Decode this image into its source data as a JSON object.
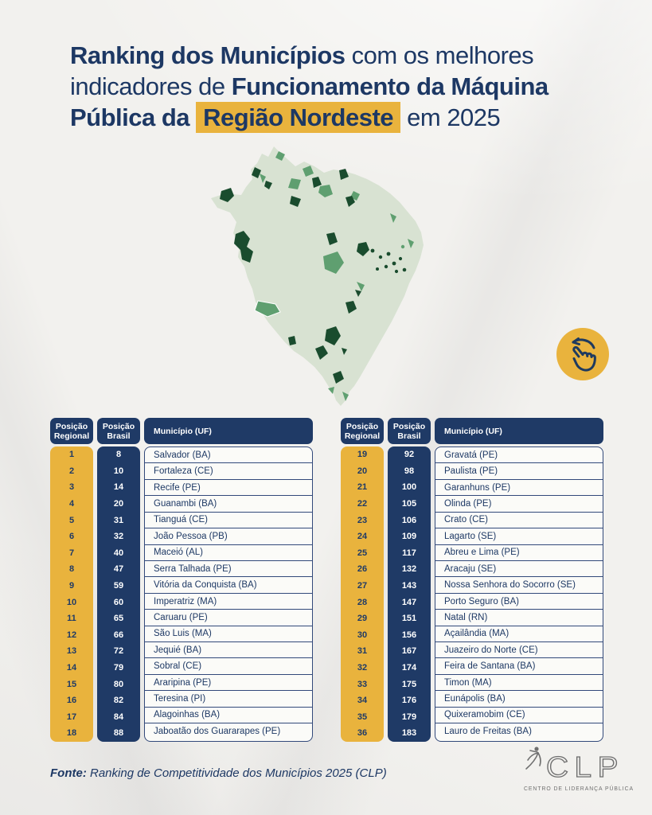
{
  "title": {
    "line1_bold": "Ranking dos Municípios",
    "line1_rest": " com os melhores",
    "line2_pre": "indicadores de ",
    "line2_bold": "Funcionamento da Máquina",
    "line3_bold": "Pública da",
    "line3_highlight": "Região Nordeste",
    "line3_rest": "em 2025"
  },
  "chart_data": {
    "type": "table",
    "title": "Ranking dos Municípios com os melhores indicadores de Funcionamento da Máquina Pública da Região Nordeste em 2025",
    "columns": [
      "Posição Regional",
      "Posição Brasil",
      "Município (UF)"
    ],
    "layout": {
      "split": "two side-by-side tables of 18 rows each",
      "legend_position": "none",
      "grid": "row separators only"
    },
    "rows": [
      [
        "1",
        "8",
        "Salvador (BA)"
      ],
      [
        "2",
        "10",
        "Fortaleza (CE)"
      ],
      [
        "3",
        "14",
        "Recife (PE)"
      ],
      [
        "4",
        "20",
        "Guanambi (BA)"
      ],
      [
        "5",
        "31",
        "Tianguá (CE)"
      ],
      [
        "6",
        "32",
        "João Pessoa (PB)"
      ],
      [
        "7",
        "40",
        "Maceió (AL)"
      ],
      [
        "8",
        "47",
        "Serra Talhada (PE)"
      ],
      [
        "9",
        "59",
        "Vitória da Conquista (BA)"
      ],
      [
        "10",
        "60",
        "Imperatriz (MA)"
      ],
      [
        "11",
        "65",
        "Caruaru (PE)"
      ],
      [
        "12",
        "66",
        "São Luis (MA)"
      ],
      [
        "13",
        "72",
        "Jequié (BA)"
      ],
      [
        "14",
        "79",
        "Sobral (CE)"
      ],
      [
        "15",
        "80",
        "Araripina (PE)"
      ],
      [
        "16",
        "82",
        "Teresina (PI)"
      ],
      [
        "17",
        "84",
        "Alagoinhas (BA)"
      ],
      [
        "18",
        "88",
        "Jaboatão dos Guararapes (PE)"
      ],
      [
        "19",
        "92",
        "Gravatá (PE)"
      ],
      [
        "20",
        "98",
        "Paulista (PE)"
      ],
      [
        "21",
        "100",
        "Garanhuns (PE)"
      ],
      [
        "22",
        "105",
        "Olinda (PE)"
      ],
      [
        "23",
        "106",
        "Crato (CE)"
      ],
      [
        "24",
        "109",
        "Lagarto (SE)"
      ],
      [
        "25",
        "117",
        "Abreu e Lima (PE)"
      ],
      [
        "26",
        "132",
        "Aracaju (SE)"
      ],
      [
        "27",
        "143",
        "Nossa Senhora do Socorro (SE)"
      ],
      [
        "28",
        "147",
        "Porto Seguro (BA)"
      ],
      [
        "29",
        "151",
        "Natal (RN)"
      ],
      [
        "30",
        "156",
        "Açailândia (MA)"
      ],
      [
        "31",
        "167",
        "Juazeiro do Norte (CE)"
      ],
      [
        "32",
        "174",
        "Feira de Santana (BA)"
      ],
      [
        "33",
        "175",
        "Timon (MA)"
      ],
      [
        "34",
        "176",
        "Eunápolis (BA)"
      ],
      [
        "35",
        "179",
        "Quixeramobim (CE)"
      ],
      [
        "36",
        "183",
        "Lauro de Freitas (BA)"
      ]
    ]
  },
  "footer": {
    "fonte_label": "Fonte:",
    "fonte_text": " Ranking de Competitividade dos Municípios 2025 (CLP)"
  },
  "logo": {
    "name": "CLP",
    "tagline": "CENTRO DE LIDERANÇA PÚBLICA"
  },
  "icons": {
    "swipe": "swipe-left-hand-icon",
    "logo_figure": "clp-leaping-figure-icon"
  },
  "colors": {
    "navy": "#1f3a66",
    "yellow": "#e9b33d",
    "paper": "#f2f1ee",
    "map_light": "#d8e2d2",
    "map_mid": "#5f9f70",
    "map_dark": "#1a4c2e",
    "row_white": "#fbfbf8",
    "text_navy": "#1d3864",
    "logo_gray": "#6f6f6f"
  }
}
